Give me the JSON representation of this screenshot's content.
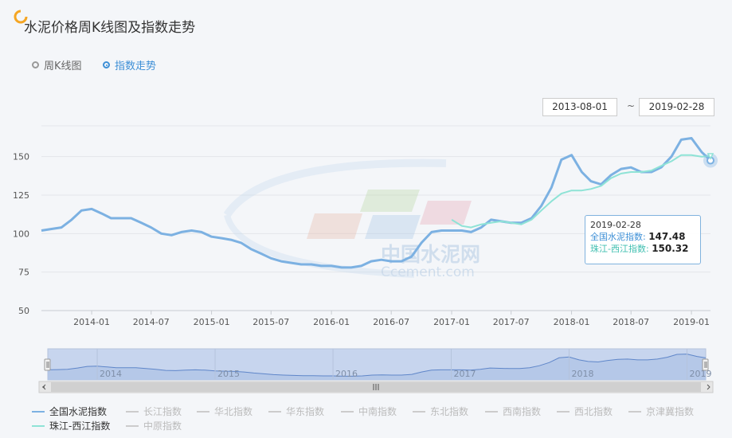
{
  "page": {
    "title": "水泥价格周K线图及指数走势"
  },
  "toggle": {
    "options": [
      {
        "label": "周K线图",
        "active": false
      },
      {
        "label": "指数走势",
        "active": true
      }
    ]
  },
  "range": {
    "start": "2013-08-01",
    "separator": "~",
    "end": "2019-02-28"
  },
  "watermark": {
    "cn": "中国水泥网",
    "en": "Ccement.com"
  },
  "colors": {
    "national": "#7cb1e2",
    "pearl": "#8ee3d6",
    "accent": "#3d8fd6"
  },
  "chart_data": {
    "type": "line",
    "ylim": [
      50,
      170
    ],
    "yticks": [
      50,
      75,
      100,
      125,
      150
    ],
    "xlim": [
      "2013-08-01",
      "2019-02-28"
    ],
    "xticks": [
      "2014-01",
      "2014-07",
      "2015-01",
      "2015-07",
      "2016-01",
      "2016-07",
      "2017-01",
      "2017-07",
      "2018-01",
      "2018-07",
      "2019-01"
    ],
    "series": [
      {
        "name": "全国水泥指数",
        "points": [
          [
            "2013-08-01",
            102
          ],
          [
            "2013-09-01",
            103
          ],
          [
            "2013-10-01",
            104
          ],
          [
            "2013-11-01",
            109
          ],
          [
            "2013-12-01",
            115
          ],
          [
            "2014-01-01",
            116
          ],
          [
            "2014-02-01",
            113
          ],
          [
            "2014-03-01",
            110
          ],
          [
            "2014-04-01",
            110
          ],
          [
            "2014-05-01",
            110
          ],
          [
            "2014-06-01",
            107
          ],
          [
            "2014-07-01",
            104
          ],
          [
            "2014-08-01",
            100
          ],
          [
            "2014-09-01",
            99
          ],
          [
            "2014-10-01",
            101
          ],
          [
            "2014-11-01",
            102
          ],
          [
            "2014-12-01",
            101
          ],
          [
            "2015-01-01",
            98
          ],
          [
            "2015-02-01",
            97
          ],
          [
            "2015-03-01",
            96
          ],
          [
            "2015-04-01",
            94
          ],
          [
            "2015-05-01",
            90
          ],
          [
            "2015-06-01",
            87
          ],
          [
            "2015-07-01",
            84
          ],
          [
            "2015-08-01",
            82
          ],
          [
            "2015-09-01",
            81
          ],
          [
            "2015-10-01",
            80
          ],
          [
            "2015-11-01",
            80
          ],
          [
            "2015-12-01",
            79
          ],
          [
            "2016-01-01",
            79
          ],
          [
            "2016-02-01",
            78
          ],
          [
            "2016-03-01",
            78
          ],
          [
            "2016-04-01",
            79
          ],
          [
            "2016-05-01",
            82
          ],
          [
            "2016-06-01",
            83
          ],
          [
            "2016-07-01",
            82
          ],
          [
            "2016-08-01",
            82
          ],
          [
            "2016-09-01",
            85
          ],
          [
            "2016-10-01",
            94
          ],
          [
            "2016-11-01",
            101
          ],
          [
            "2016-12-01",
            102
          ],
          [
            "2017-01-01",
            102
          ],
          [
            "2017-02-01",
            102
          ],
          [
            "2017-03-01",
            101
          ],
          [
            "2017-04-01",
            104
          ],
          [
            "2017-05-01",
            109
          ],
          [
            "2017-06-01",
            108
          ],
          [
            "2017-07-01",
            107
          ],
          [
            "2017-08-01",
            107
          ],
          [
            "2017-09-01",
            110
          ],
          [
            "2017-10-01",
            118
          ],
          [
            "2017-11-01",
            130
          ],
          [
            "2017-12-01",
            148
          ],
          [
            "2018-01-01",
            151
          ],
          [
            "2018-02-01",
            140
          ],
          [
            "2018-03-01",
            134
          ],
          [
            "2018-04-01",
            132
          ],
          [
            "2018-05-01",
            138
          ],
          [
            "2018-06-01",
            142
          ],
          [
            "2018-07-01",
            143
          ],
          [
            "2018-08-01",
            140
          ],
          [
            "2018-09-01",
            140
          ],
          [
            "2018-10-01",
            143
          ],
          [
            "2018-11-01",
            150
          ],
          [
            "2018-12-01",
            161
          ],
          [
            "2019-01-01",
            162
          ],
          [
            "2019-02-01",
            153
          ],
          [
            "2019-02-28",
            147.48
          ]
        ]
      },
      {
        "name": "珠江-西江指数",
        "points": [
          [
            "2017-01-01",
            109
          ],
          [
            "2017-02-01",
            105
          ],
          [
            "2017-03-01",
            104
          ],
          [
            "2017-04-01",
            106
          ],
          [
            "2017-05-01",
            107
          ],
          [
            "2017-06-01",
            108
          ],
          [
            "2017-07-01",
            107
          ],
          [
            "2017-08-01",
            106
          ],
          [
            "2017-09-01",
            109
          ],
          [
            "2017-10-01",
            115
          ],
          [
            "2017-11-01",
            121
          ],
          [
            "2017-12-01",
            126
          ],
          [
            "2018-01-01",
            128
          ],
          [
            "2018-02-01",
            128
          ],
          [
            "2018-03-01",
            129
          ],
          [
            "2018-04-01",
            131
          ],
          [
            "2018-05-01",
            136
          ],
          [
            "2018-06-01",
            139
          ],
          [
            "2018-07-01",
            140
          ],
          [
            "2018-08-01",
            140
          ],
          [
            "2018-09-01",
            141
          ],
          [
            "2018-10-01",
            144
          ],
          [
            "2018-11-01",
            147
          ],
          [
            "2018-12-01",
            151
          ],
          [
            "2019-01-01",
            151
          ],
          [
            "2019-02-01",
            150
          ],
          [
            "2019-02-28",
            150.32
          ]
        ]
      }
    ],
    "tooltip": {
      "date": "2019-02-28",
      "national_label": "全国水泥指数",
      "national_value": "147.48",
      "pearl_label": "珠江-西江指数",
      "pearl_value": "150.32"
    },
    "navigator_labels": [
      "2014",
      "2015",
      "2016",
      "2017",
      "2018",
      "2019"
    ]
  },
  "legend": [
    {
      "label": "全国水泥指数",
      "on": true,
      "color": "#7cb1e2"
    },
    {
      "label": "长江指数",
      "on": false
    },
    {
      "label": "华北指数",
      "on": false
    },
    {
      "label": "华东指数",
      "on": false
    },
    {
      "label": "中南指数",
      "on": false
    },
    {
      "label": "东北指数",
      "on": false
    },
    {
      "label": "西南指数",
      "on": false
    },
    {
      "label": "西北指数",
      "on": false
    },
    {
      "label": "京津冀指数",
      "on": false
    },
    {
      "label": "珠江-西江指数",
      "on": true,
      "color": "#8ee3d6"
    },
    {
      "label": "中原指数",
      "on": false
    }
  ]
}
